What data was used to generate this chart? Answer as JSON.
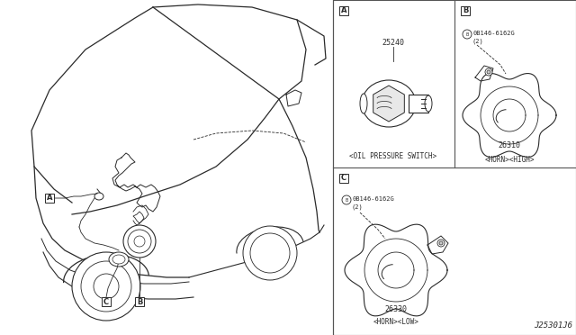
{
  "bg_color": "#ffffff",
  "line_color": "#2a2a2a",
  "border_color": "#555555",
  "diagram_id": "J25301J6",
  "part_A_number": "25240",
  "part_A_name": "<OIL PRESSURE SWITCH>",
  "part_B_number": "26310",
  "part_B_name": "<HORN><HIGH>",
  "part_B_bolt": "0B146-6162G",
  "part_B_bolt_qty": "(2)",
  "part_C_number": "26330",
  "part_C_name": "<HORN><LOW>",
  "part_C_bolt": "0B146-6162G",
  "part_C_bolt_qty": "(2)",
  "font_size_label": 6,
  "font_size_part_num": 6,
  "font_size_part_name": 5.5,
  "font_size_bolt": 5,
  "font_size_id": 6.5
}
